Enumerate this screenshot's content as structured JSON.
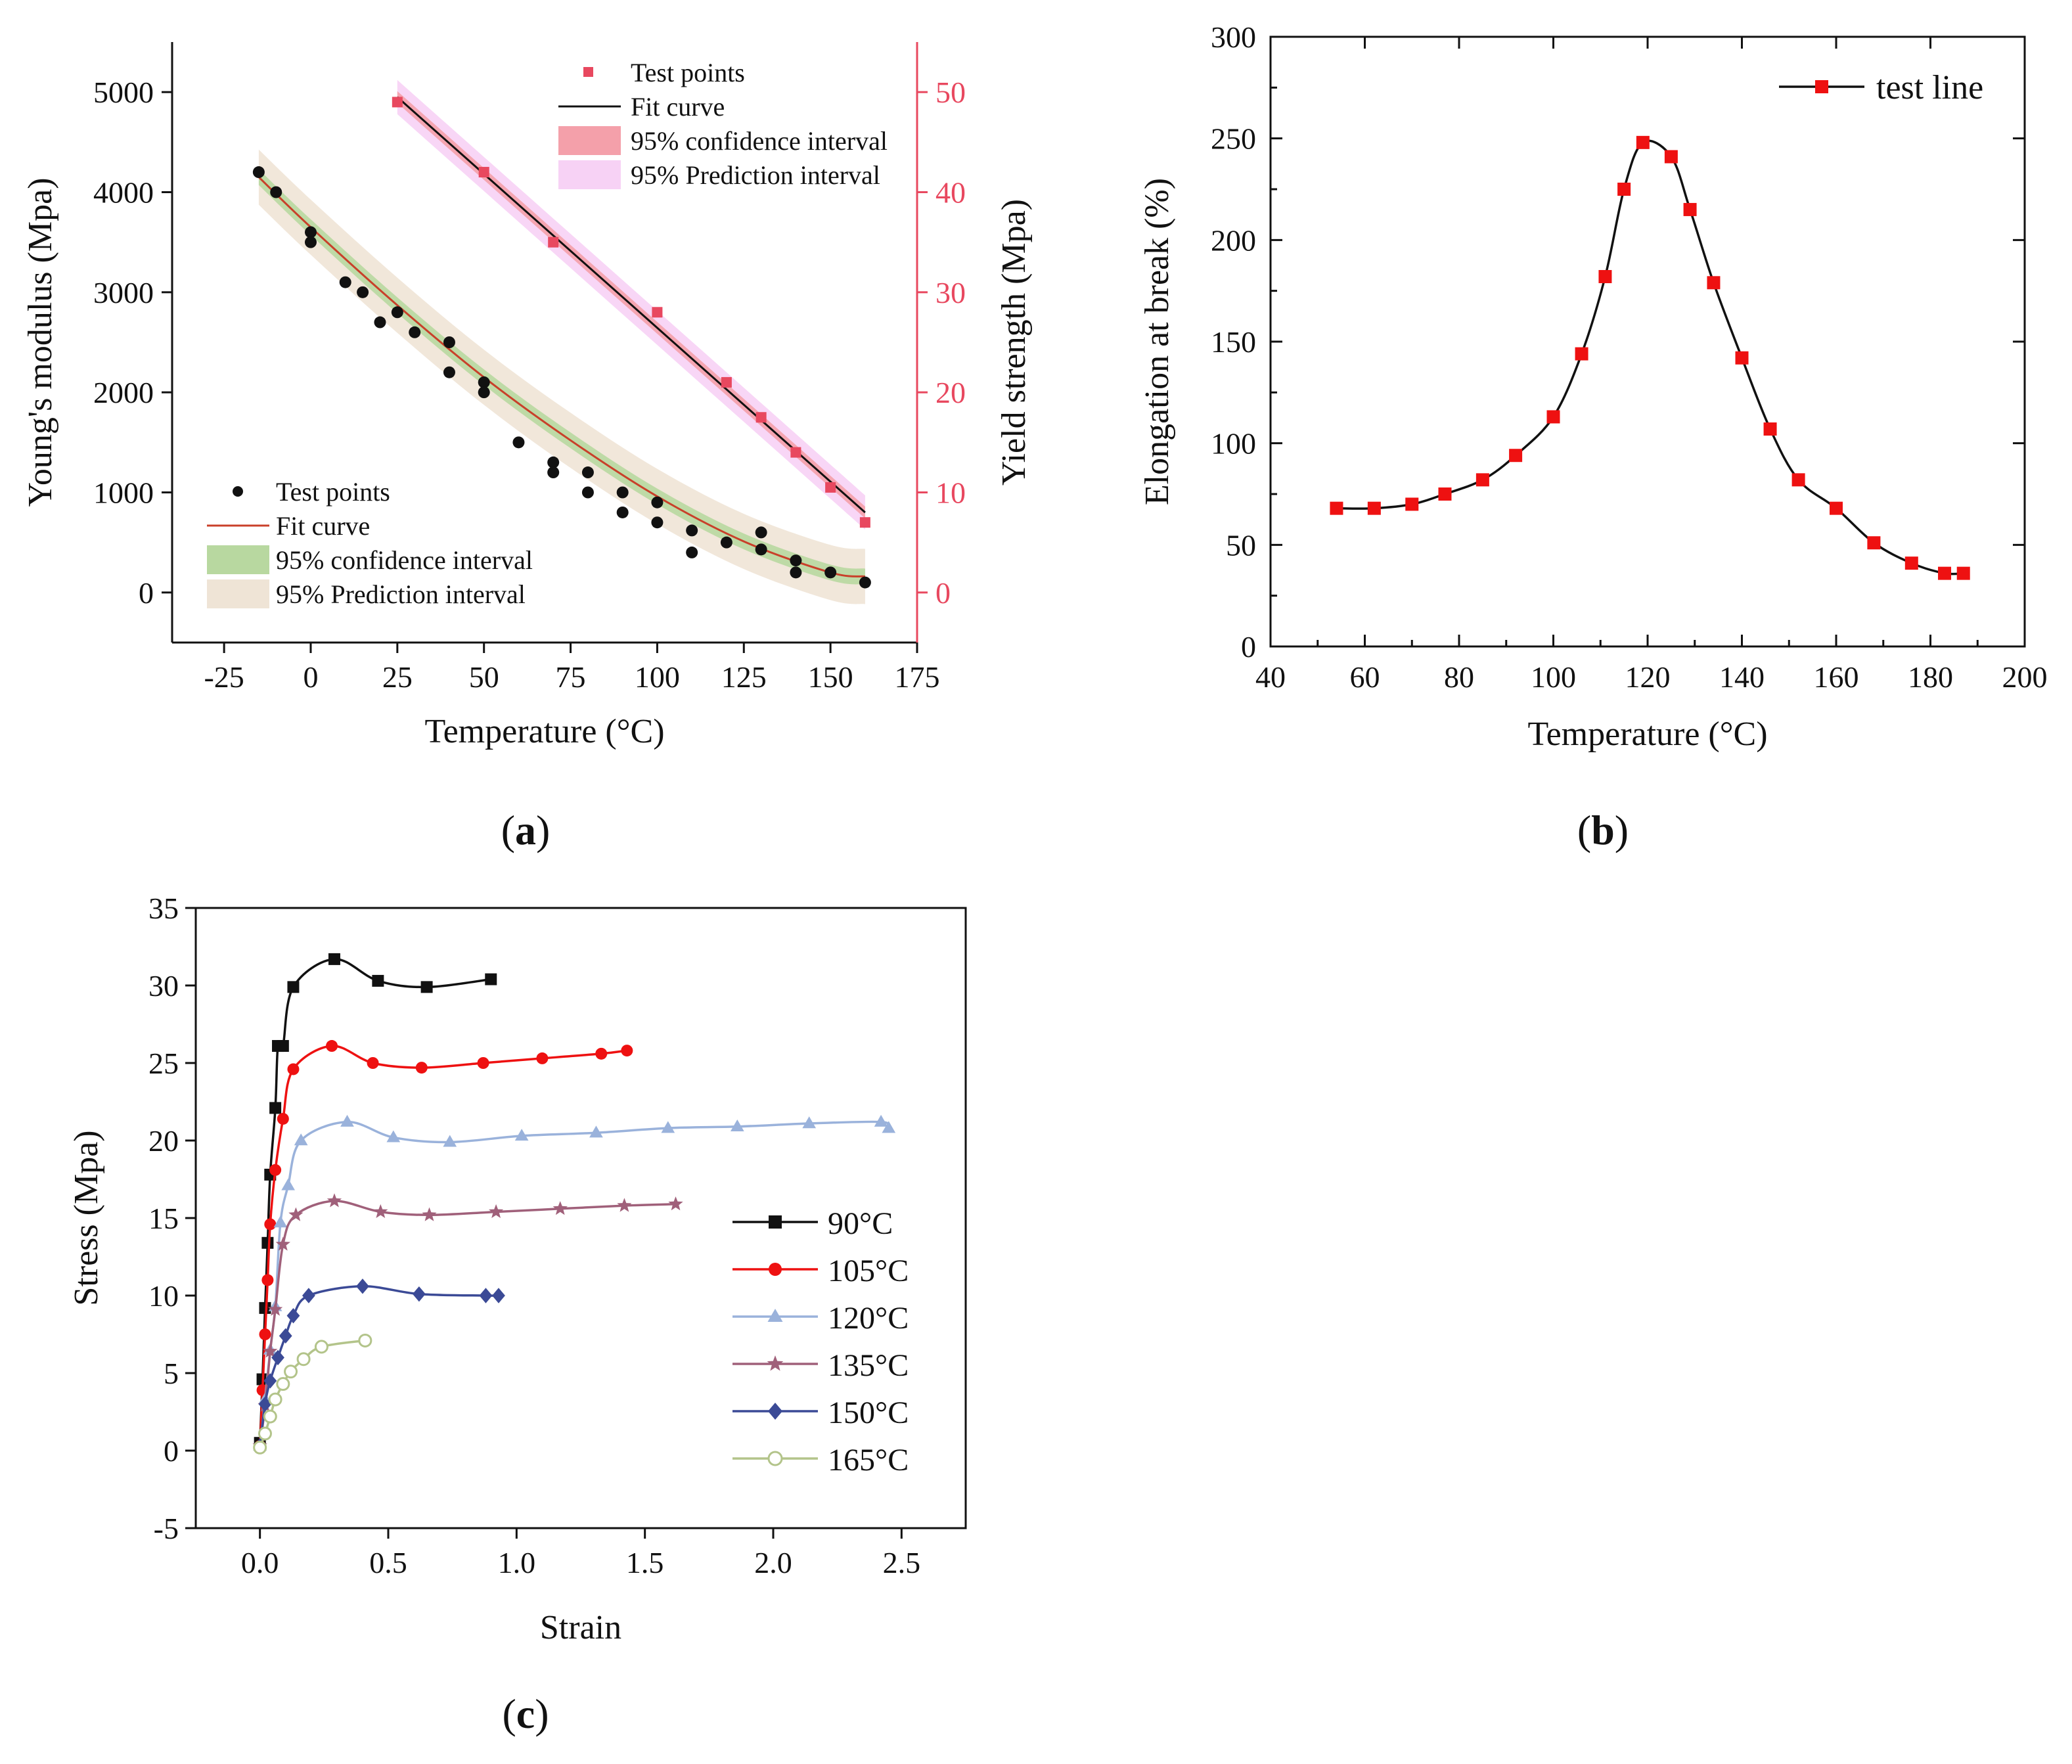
{
  "chart_data": [
    {
      "panel": "(a)",
      "panel_letter": "a",
      "type": "scatter",
      "xlabel": "Temperature (°C)",
      "ylabel_left": "Young's modulus (Mpa)",
      "ylabel_right": "Yield strength (Mpa)",
      "xlim": [
        -40,
        175
      ],
      "ylim_left": [
        -500,
        5500
      ],
      "ylim_right": [
        -5,
        55
      ],
      "xticks": [
        -25,
        0,
        25,
        50,
        75,
        100,
        125,
        150,
        175
      ],
      "yticks_left": [
        0,
        1000,
        2000,
        3000,
        4000,
        5000
      ],
      "yticks_right": [
        0,
        10,
        20,
        30,
        40,
        50
      ],
      "right_axis_color": "#e8485f",
      "legend_right_series": {
        "placement": "top-right",
        "entries": [
          "Test points",
          "Fit curve",
          "95% confidence interval",
          "95% Prediction interval"
        ]
      },
      "legend_left_series": {
        "placement": "bottom-left",
        "entries": [
          "Test points",
          "Fit curve",
          "95% confidence interval",
          "95% Prediction interval"
        ]
      },
      "series": [
        {
          "axis": "left",
          "marker": "circle",
          "color": "#111111",
          "fit_color": "#c9402a",
          "confidence_color": "#b8d8a0",
          "prediction_color": "#efe4d6",
          "points": [
            [
              -15,
              4200
            ],
            [
              -10,
              4000
            ],
            [
              0,
              3600
            ],
            [
              0,
              3500
            ],
            [
              10,
              3100
            ],
            [
              15,
              3000
            ],
            [
              20,
              2700
            ],
            [
              25,
              2800
            ],
            [
              30,
              2600
            ],
            [
              40,
              2500
            ],
            [
              40,
              2200
            ],
            [
              50,
              2100
            ],
            [
              50,
              2000
            ],
            [
              60,
              1500
            ],
            [
              70,
              1300
            ],
            [
              70,
              1200
            ],
            [
              80,
              1200
            ],
            [
              80,
              1000
            ],
            [
              90,
              1000
            ],
            [
              90,
              800
            ],
            [
              100,
              900
            ],
            [
              100,
              700
            ],
            [
              110,
              620
            ],
            [
              110,
              400
            ],
            [
              120,
              500
            ],
            [
              130,
              600
            ],
            [
              130,
              430
            ],
            [
              140,
              320
            ],
            [
              140,
              200
            ],
            [
              150,
              200
            ],
            [
              160,
              100
            ]
          ],
          "fit": [
            [
              -15,
              4150
            ],
            [
              0,
              3650
            ],
            [
              25,
              2870
            ],
            [
              50,
              2150
            ],
            [
              75,
              1520
            ],
            [
              100,
              960
            ],
            [
              125,
              510
            ],
            [
              150,
              200
            ],
            [
              160,
              160
            ]
          ]
        },
        {
          "axis": "right",
          "marker": "square",
          "color": "#e8485f",
          "fit_color": "#111111",
          "confidence_color": "#f4a0aa",
          "prediction_color": "#f7d2f5",
          "points": [
            [
              25,
              49
            ],
            [
              50,
              42
            ],
            [
              70,
              35
            ],
            [
              100,
              28
            ],
            [
              120,
              21
            ],
            [
              130,
              17.5
            ],
            [
              140,
              14
            ],
            [
              150,
              10.5
            ],
            [
              160,
              7
            ]
          ],
          "fit": [
            [
              25,
              49.5
            ],
            [
              160,
              8
            ]
          ]
        }
      ]
    },
    {
      "panel": "(b)",
      "panel_letter": "b",
      "type": "line",
      "xlabel": "Temperature (°C)",
      "ylabel": "Elongation at break (%)",
      "xlim": [
        40,
        200
      ],
      "ylim": [
        0,
        300
      ],
      "xticks": [
        40,
        60,
        80,
        100,
        120,
        140,
        160,
        180,
        200
      ],
      "yticks": [
        0,
        50,
        100,
        150,
        200,
        250,
        300
      ],
      "legend_placement": "top-right",
      "series": [
        {
          "name": "test line",
          "marker": "square",
          "marker_color": "#ee1111",
          "line_color": "#111111",
          "x": [
            54,
            62,
            70,
            77,
            85,
            92,
            100,
            106,
            111,
            115,
            119,
            125,
            129,
            134,
            140,
            146,
            152,
            160,
            168,
            176,
            183,
            187
          ],
          "y": [
            68,
            68,
            70,
            75,
            82,
            94,
            113,
            144,
            182,
            225,
            248,
            241,
            215,
            179,
            142,
            107,
            82,
            68,
            51,
            41,
            36,
            36
          ]
        }
      ]
    },
    {
      "panel": "(c)",
      "panel_letter": "c",
      "type": "line",
      "xlabel": "Strain",
      "ylabel": "Stress (Mpa)",
      "xlim": [
        -0.25,
        2.75
      ],
      "ylim": [
        -5,
        35
      ],
      "xticks": [
        "0.0",
        "0.5",
        "1.0",
        "1.5",
        "2.0",
        "2.5"
      ],
      "yticks": [
        "-5",
        "0",
        "5",
        "10",
        "15",
        "20",
        "25",
        "30",
        "35"
      ],
      "legend_placement": "center-right",
      "series": [
        {
          "name": "90°C",
          "marker": "square",
          "color": "#111111",
          "x": [
            0.0,
            0.01,
            0.02,
            0.03,
            0.04,
            0.06,
            0.07,
            0.09,
            0.13,
            0.29,
            0.46,
            0.65,
            0.9
          ],
          "y": [
            0.5,
            4.6,
            9.2,
            13.4,
            17.8,
            22.1,
            26.1,
            26.1,
            29.9,
            31.7,
            30.3,
            29.9,
            30.4
          ]
        },
        {
          "name": "105°C",
          "marker": "circle",
          "color": "#ee1111",
          "x": [
            0.0,
            0.01,
            0.02,
            0.03,
            0.04,
            0.06,
            0.09,
            0.13,
            0.28,
            0.44,
            0.63,
            0.87,
            1.1,
            1.33,
            1.43
          ],
          "y": [
            0.3,
            3.9,
            7.5,
            11.0,
            14.6,
            18.1,
            21.4,
            24.6,
            26.1,
            25.0,
            24.7,
            25.0,
            25.3,
            25.6,
            25.8
          ]
        },
        {
          "name": "120°C",
          "marker": "triangle",
          "color": "#9ab2db",
          "x": [
            0.0,
            0.02,
            0.04,
            0.06,
            0.08,
            0.11,
            0.16,
            0.34,
            0.52,
            0.74,
            1.02,
            1.31,
            1.59,
            1.86,
            2.14,
            2.42,
            2.45
          ],
          "y": [
            0.3,
            3.3,
            6.5,
            9.3,
            14.7,
            17.1,
            20.0,
            21.2,
            20.2,
            19.9,
            20.3,
            20.5,
            20.8,
            20.9,
            21.1,
            21.2,
            20.8
          ]
        },
        {
          "name": "135°C",
          "marker": "star",
          "color": "#a0607a",
          "x": [
            0.0,
            0.02,
            0.04,
            0.06,
            0.09,
            0.14,
            0.29,
            0.47,
            0.66,
            0.92,
            1.17,
            1.42,
            1.62
          ],
          "y": [
            0.3,
            2.9,
            6.4,
            9.1,
            13.3,
            15.2,
            16.1,
            15.4,
            15.2,
            15.4,
            15.6,
            15.8,
            15.9
          ]
        },
        {
          "name": "150°C",
          "marker": "diamond",
          "color": "#3b4a96",
          "x": [
            0.0,
            0.02,
            0.04,
            0.07,
            0.1,
            0.13,
            0.19,
            0.4,
            0.62,
            0.88,
            0.93
          ],
          "y": [
            0.3,
            3.0,
            4.5,
            6.0,
            7.4,
            8.7,
            10.0,
            10.6,
            10.1,
            10.0,
            10.0
          ]
        },
        {
          "name": "165°C",
          "marker": "open-circle",
          "color": "#b3c48a",
          "x": [
            0.0,
            0.02,
            0.04,
            0.06,
            0.09,
            0.12,
            0.17,
            0.24,
            0.41
          ],
          "y": [
            0.2,
            1.1,
            2.2,
            3.3,
            4.3,
            5.1,
            5.9,
            6.7,
            7.1
          ]
        }
      ]
    }
  ]
}
